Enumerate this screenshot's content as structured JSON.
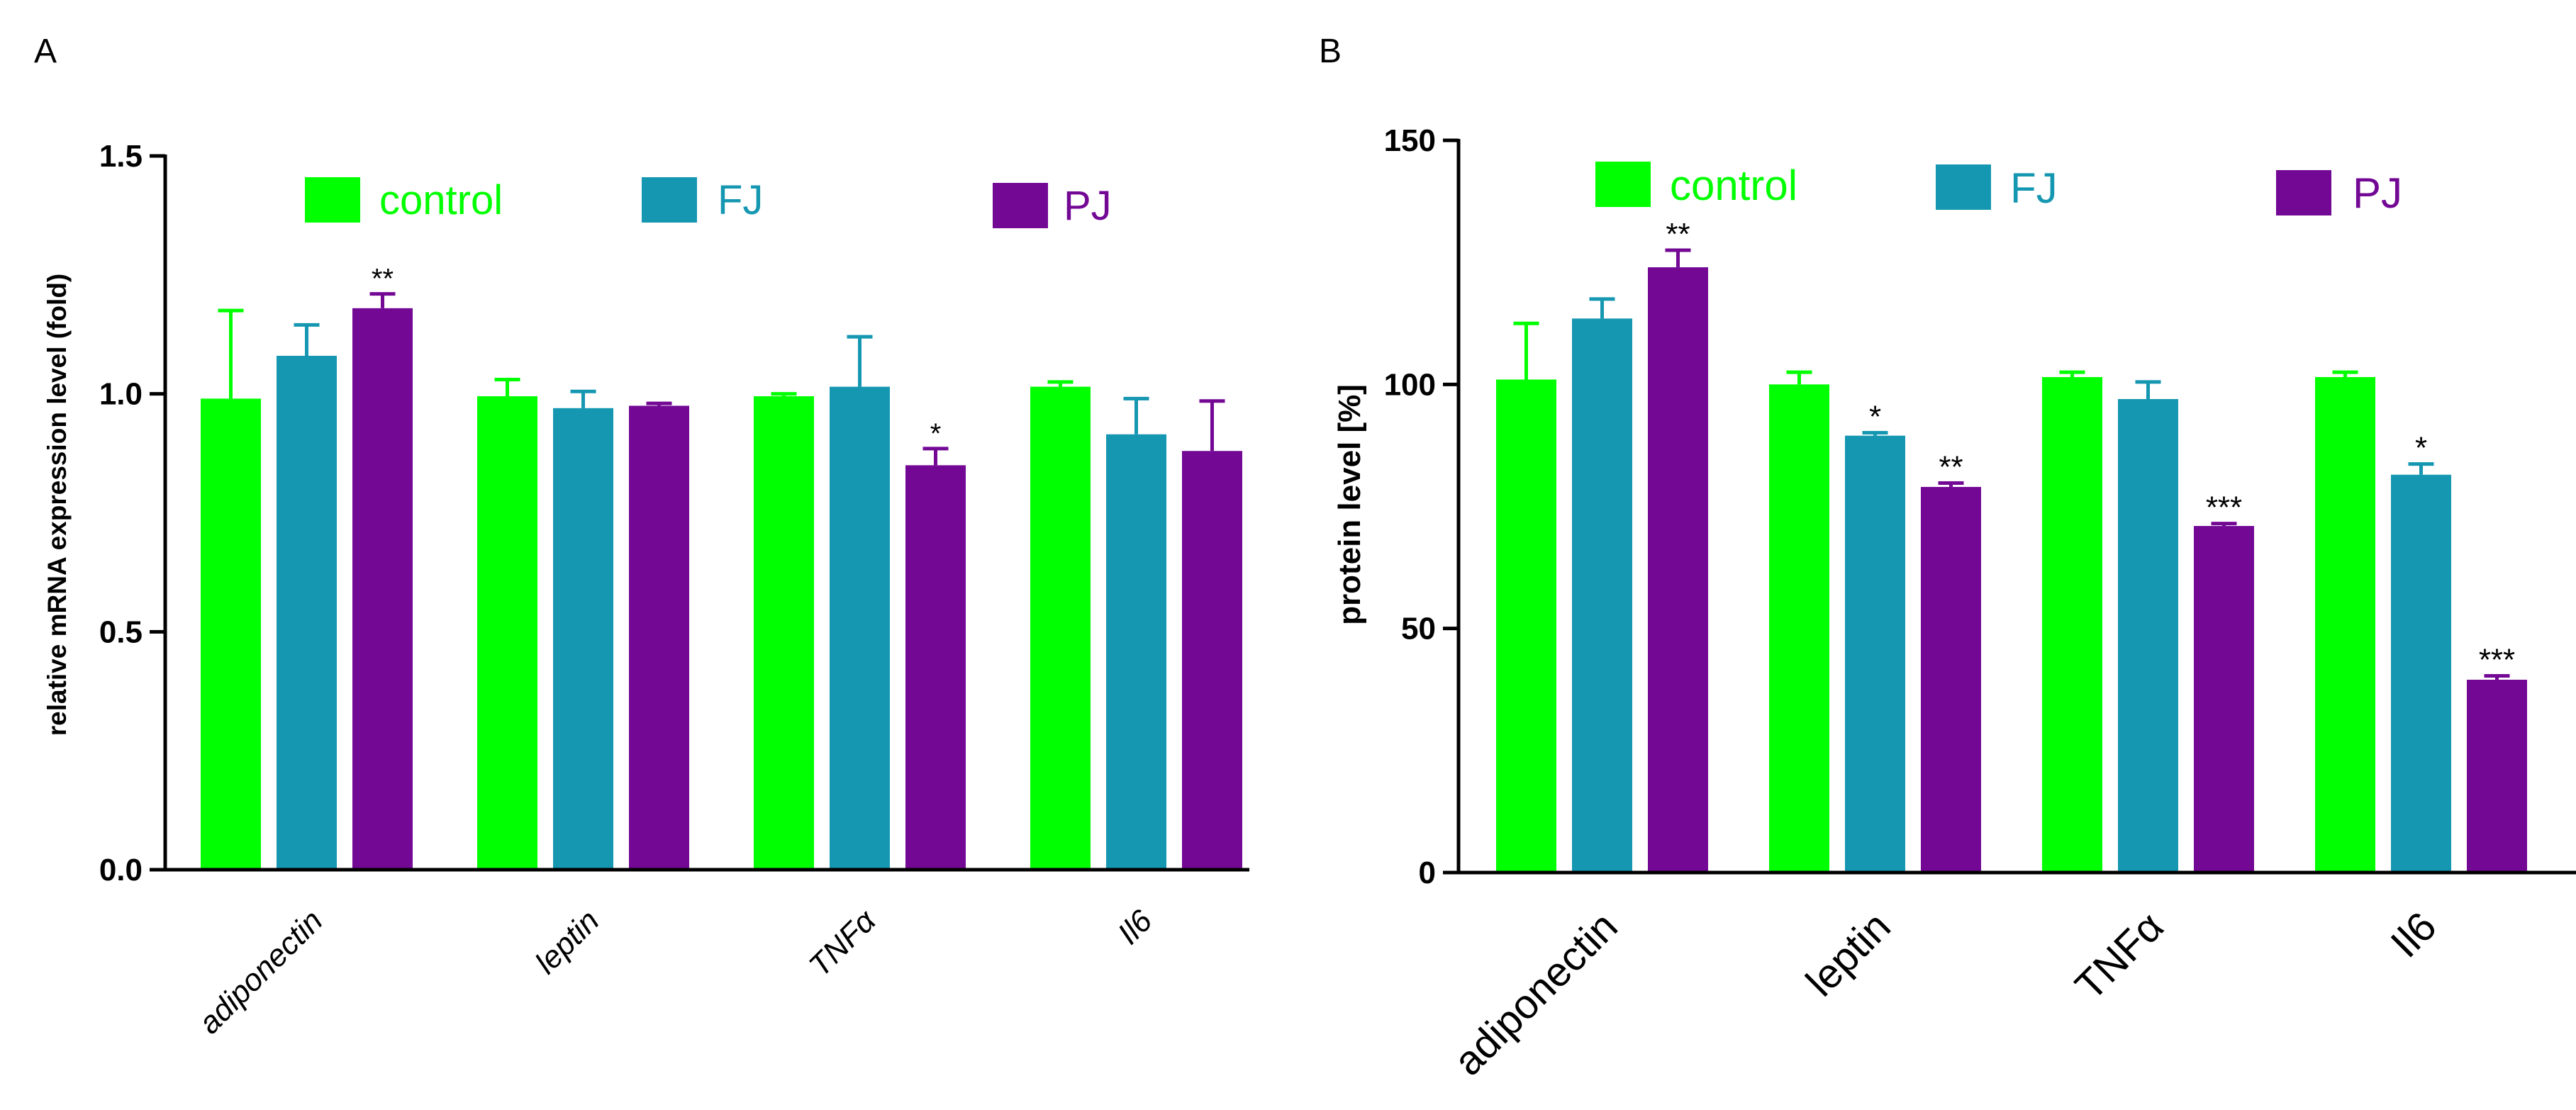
{
  "chart_data": [
    {
      "panel": "A",
      "type": "bar",
      "ylabel": "relative mRNA expression level (fold)",
      "xlabel": "",
      "ylim": [
        0,
        1.5
      ],
      "yticks": [
        "0.0",
        "0.5",
        "1.0",
        "1.5"
      ],
      "categories": [
        "adiponectin",
        "leptin",
        "TNFα",
        "Il6"
      ],
      "categories_italic": true,
      "series": [
        {
          "name": "control",
          "color": "#00ff00",
          "values": [
            0.99,
            0.995,
            0.995,
            1.015
          ],
          "errors": [
            0.185,
            0.035,
            0.005,
            0.01
          ],
          "stars": [
            "",
            "",
            "",
            ""
          ]
        },
        {
          "name": "FJ",
          "color": "#1597b1",
          "values": [
            1.08,
            0.97,
            1.015,
            0.915
          ],
          "errors": [
            0.065,
            0.035,
            0.105,
            0.075
          ],
          "stars": [
            "",
            "",
            "",
            ""
          ]
        },
        {
          "name": "PJ",
          "color": "#730895",
          "values": [
            1.18,
            0.975,
            0.85,
            0.88
          ],
          "errors": [
            0.03,
            0.005,
            0.035,
            0.105
          ],
          "stars": [
            "**",
            "",
            "*",
            ""
          ]
        }
      ]
    },
    {
      "panel": "B",
      "type": "bar",
      "ylabel": "protein level [%]",
      "xlabel": "",
      "ylim": [
        0,
        150
      ],
      "yticks": [
        "0",
        "50",
        "100",
        "150"
      ],
      "categories": [
        "adiponectin",
        "leptin",
        "TNFα",
        "Il6"
      ],
      "categories_italic": false,
      "series": [
        {
          "name": "control",
          "color": "#00ff00",
          "values": [
            101,
            100,
            101.5,
            101.5
          ],
          "errors": [
            11.5,
            2.5,
            1.0,
            1.0
          ],
          "stars": [
            "",
            "",
            "",
            ""
          ]
        },
        {
          "name": "FJ",
          "color": "#1597b1",
          "values": [
            113.5,
            89.5,
            97,
            81.5
          ],
          "errors": [
            4.0,
            0.6,
            3.5,
            2.2
          ],
          "stars": [
            "",
            "*",
            "",
            "*"
          ]
        },
        {
          "name": "PJ",
          "color": "#730895",
          "values": [
            124,
            79,
            71,
            39.5
          ],
          "errors": [
            3.5,
            0.8,
            0.5,
            0.8
          ],
          "stars": [
            "**",
            "**",
            "***",
            "***"
          ]
        }
      ]
    }
  ]
}
